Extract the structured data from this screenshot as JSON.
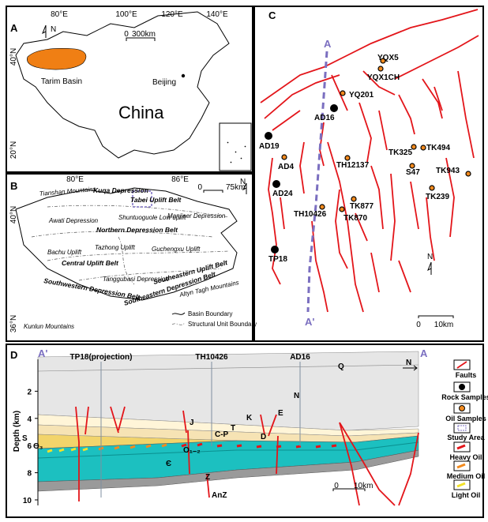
{
  "panel_a": {
    "label": "A",
    "lon_labels": [
      "80°E",
      "100°E",
      "120°E",
      "140°E"
    ],
    "lat_labels": [
      "40°N",
      "20°N"
    ],
    "north": "N",
    "scale": [
      "0",
      "300km"
    ],
    "places": [
      "Tarim Basin",
      "Beijing",
      "China"
    ]
  },
  "panel_b": {
    "label": "B",
    "lon_labels": [
      "80°E",
      "86°E"
    ],
    "lat_labels": [
      "40°N",
      "36°N"
    ],
    "north": "N",
    "scale": [
      "0",
      "75km"
    ],
    "units": [
      "Tianshan Mountains",
      "Kuqa Depression",
      "Tabei Uplift Belt",
      "Awati Depression",
      "Shuntuoguole Low uplift",
      "Manjiaer Depression",
      "Northern Depression Belt",
      "Bachu Uplift",
      "Tazhong Uplift",
      "Guchengxu Uplift",
      "Central Uplift Belt",
      "Tanggubasi Depression",
      "Southeastern Uplift Belt",
      "Southeastern Depression Belt",
      "Southwestern Depression Belt",
      "Kunlun Mountains",
      "Altyn Tagh Mountains"
    ],
    "legend": [
      "Basin Boundary",
      "Structural Unit Boundary"
    ]
  },
  "panel_c": {
    "label": "C",
    "section_ends": [
      "A",
      "A'"
    ],
    "wells": [
      "YQX5",
      "YQX1CH",
      "YQ201",
      "AD16",
      "AD19",
      "AD4",
      "AD24",
      "TH12137",
      "TH10426",
      "TK877",
      "TK870",
      "TP18",
      "TK325",
      "TK494",
      "S47",
      "TK943",
      "TK239"
    ],
    "north": "N",
    "scale": [
      "0",
      "10km"
    ]
  },
  "panel_d": {
    "label": "D",
    "section_ends": [
      "A'",
      "A"
    ],
    "direction": "N",
    "wells": [
      "TP18(projection)",
      "TH10426",
      "AD16"
    ],
    "strata": [
      "Q",
      "N",
      "K",
      "E",
      "J",
      "T",
      "C-P",
      "D",
      "S",
      "O₃",
      "O₁₋₂",
      "Є",
      "Z",
      "AnZ"
    ],
    "y_axis_label": "Depth (km)",
    "depth_ticks": [
      2,
      4,
      6,
      8,
      10
    ],
    "scale": [
      "0",
      "10km"
    ],
    "legend": [
      "Faults",
      "Rock Samples",
      "Oil Samples",
      "Study Area",
      "Heavy Oil",
      "Medium Oil",
      "Light Oil"
    ]
  }
}
